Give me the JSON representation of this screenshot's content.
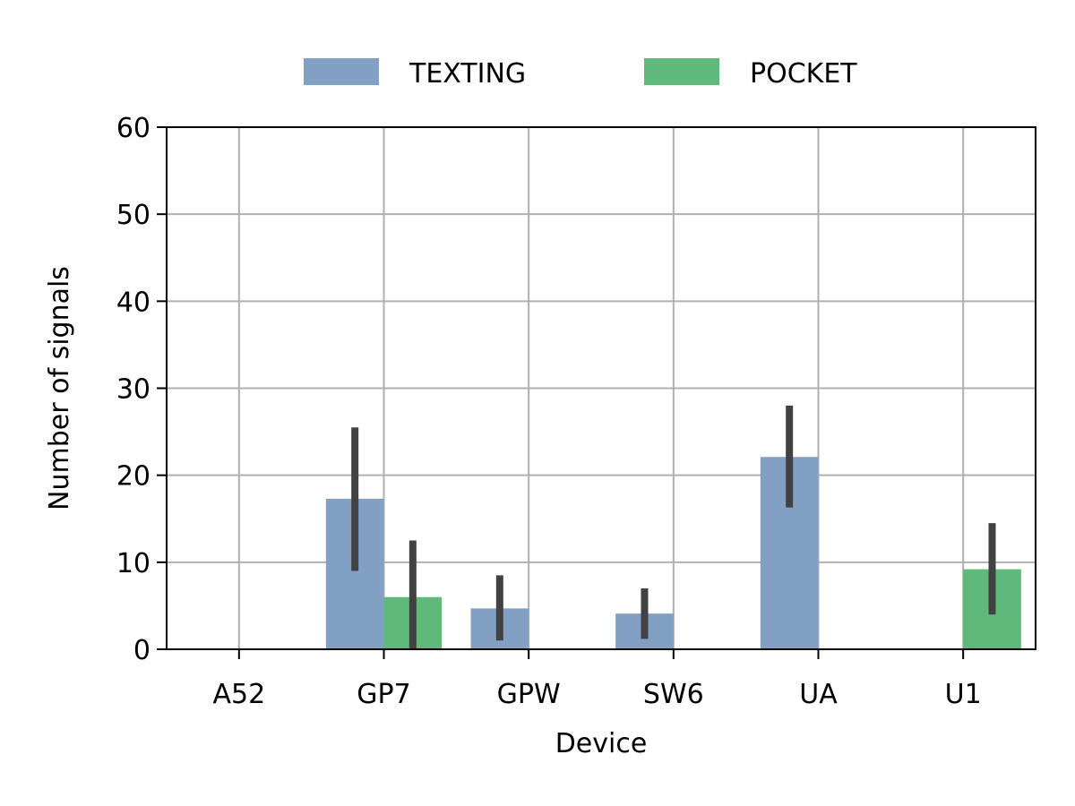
{
  "chart_data": {
    "type": "bar",
    "categories": [
      "A52",
      "GP7",
      "GPW",
      "SW6",
      "UA",
      "U1"
    ],
    "series": [
      {
        "name": "TEXTING",
        "color": "#82a0c4",
        "values": [
          0,
          17.3,
          4.7,
          4.1,
          22.1,
          0
        ],
        "error_low": [
          null,
          9,
          1,
          1.2,
          16.3,
          null
        ],
        "error_high": [
          null,
          25.5,
          8.5,
          7,
          28,
          null
        ]
      },
      {
        "name": "POCKET",
        "color": "#5fb97a",
        "values": [
          0,
          6.0,
          0,
          0,
          0,
          9.2
        ],
        "error_low": [
          null,
          0,
          null,
          null,
          null,
          4
        ],
        "error_high": [
          null,
          12.5,
          null,
          null,
          null,
          14.5
        ]
      }
    ],
    "error_bar_color": "#424242",
    "xlabel": "Device",
    "ylabel": "Number of signals",
    "ylim": [
      0,
      60
    ],
    "yticks": [
      "0",
      "10",
      "20",
      "30",
      "40",
      "50",
      "60"
    ],
    "grid": true,
    "legend_position": "top-center"
  }
}
